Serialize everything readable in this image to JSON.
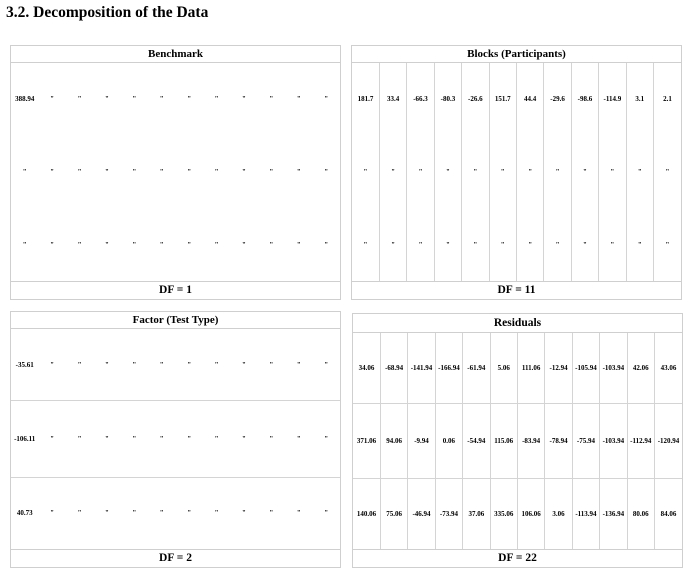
{
  "heading": "3.2. Decomposition of the Data",
  "panels": {
    "benchmark": {
      "title": "Benchmark",
      "df": "DF = 1",
      "rows": [
        [
          "388.94",
          "\"",
          "\"",
          "\"",
          "\"",
          "\"",
          "\"",
          "\"",
          "\"",
          "\"",
          "\"",
          "\""
        ],
        [
          "\"",
          "\"",
          "\"",
          "\"",
          "\"",
          "\"",
          "\"",
          "\"",
          "\"",
          "\"",
          "\"",
          "\""
        ],
        [
          "\"",
          "\"",
          "\"",
          "\"",
          "\"",
          "\"",
          "\"",
          "\"",
          "\"",
          "\"",
          "\"",
          "\""
        ]
      ]
    },
    "blocks": {
      "title": "Blocks (Participants)",
      "df": "DF = 11",
      "rows": [
        [
          "181.7",
          "33.4",
          "-66.3",
          "-80.3",
          "-26.6",
          "151.7",
          "44.4",
          "-29.6",
          "-98.6",
          "-114.9",
          "3.1",
          "2.1"
        ],
        [
          "\"",
          "\"",
          "\"",
          "\"",
          "\"",
          "\"",
          "\"",
          "\"",
          "\"",
          "\"",
          "\"",
          "\""
        ],
        [
          "\"",
          "\"",
          "\"",
          "\"",
          "\"",
          "\"",
          "\"",
          "\"",
          "\"",
          "\"",
          "\"",
          "\""
        ]
      ]
    },
    "factor": {
      "title": "Factor (Test Type)",
      "df": "DF = 2",
      "rows": [
        [
          "-35.61",
          "\"",
          "\"",
          "\"",
          "\"",
          "\"",
          "\"",
          "\"",
          "\"",
          "\"",
          "\"",
          "\""
        ],
        [
          "-106.11",
          "\"",
          "\"",
          "\"",
          "\"",
          "\"",
          "\"",
          "\"",
          "\"",
          "\"",
          "\"",
          "\""
        ],
        [
          "40.73",
          "\"",
          "\"",
          "\"",
          "\"",
          "\"",
          "\"",
          "\"",
          "\"",
          "\"",
          "\"",
          "\""
        ]
      ]
    },
    "residuals": {
      "title": "Residuals",
      "df": "DF = 22",
      "rows": [
        [
          "34.06",
          "-68.94",
          "-141.94",
          "-166.94",
          "-61.94",
          "5.06",
          "111.06",
          "-12.94",
          "-105.94",
          "-103.94",
          "42.06",
          "43.06"
        ],
        [
          "371.06",
          "94.06",
          "-9.94",
          "0.06",
          "-54.94",
          "115.06",
          "-83.94",
          "-78.94",
          "-75.94",
          "-103.94",
          "-112.94",
          "-120.94"
        ],
        [
          "140.06",
          "75.06",
          "-46.94",
          "-73.94",
          "37.06",
          "335.06",
          "106.06",
          "3.06",
          "-113.94",
          "-136.94",
          "80.06",
          "84.06"
        ]
      ]
    }
  }
}
